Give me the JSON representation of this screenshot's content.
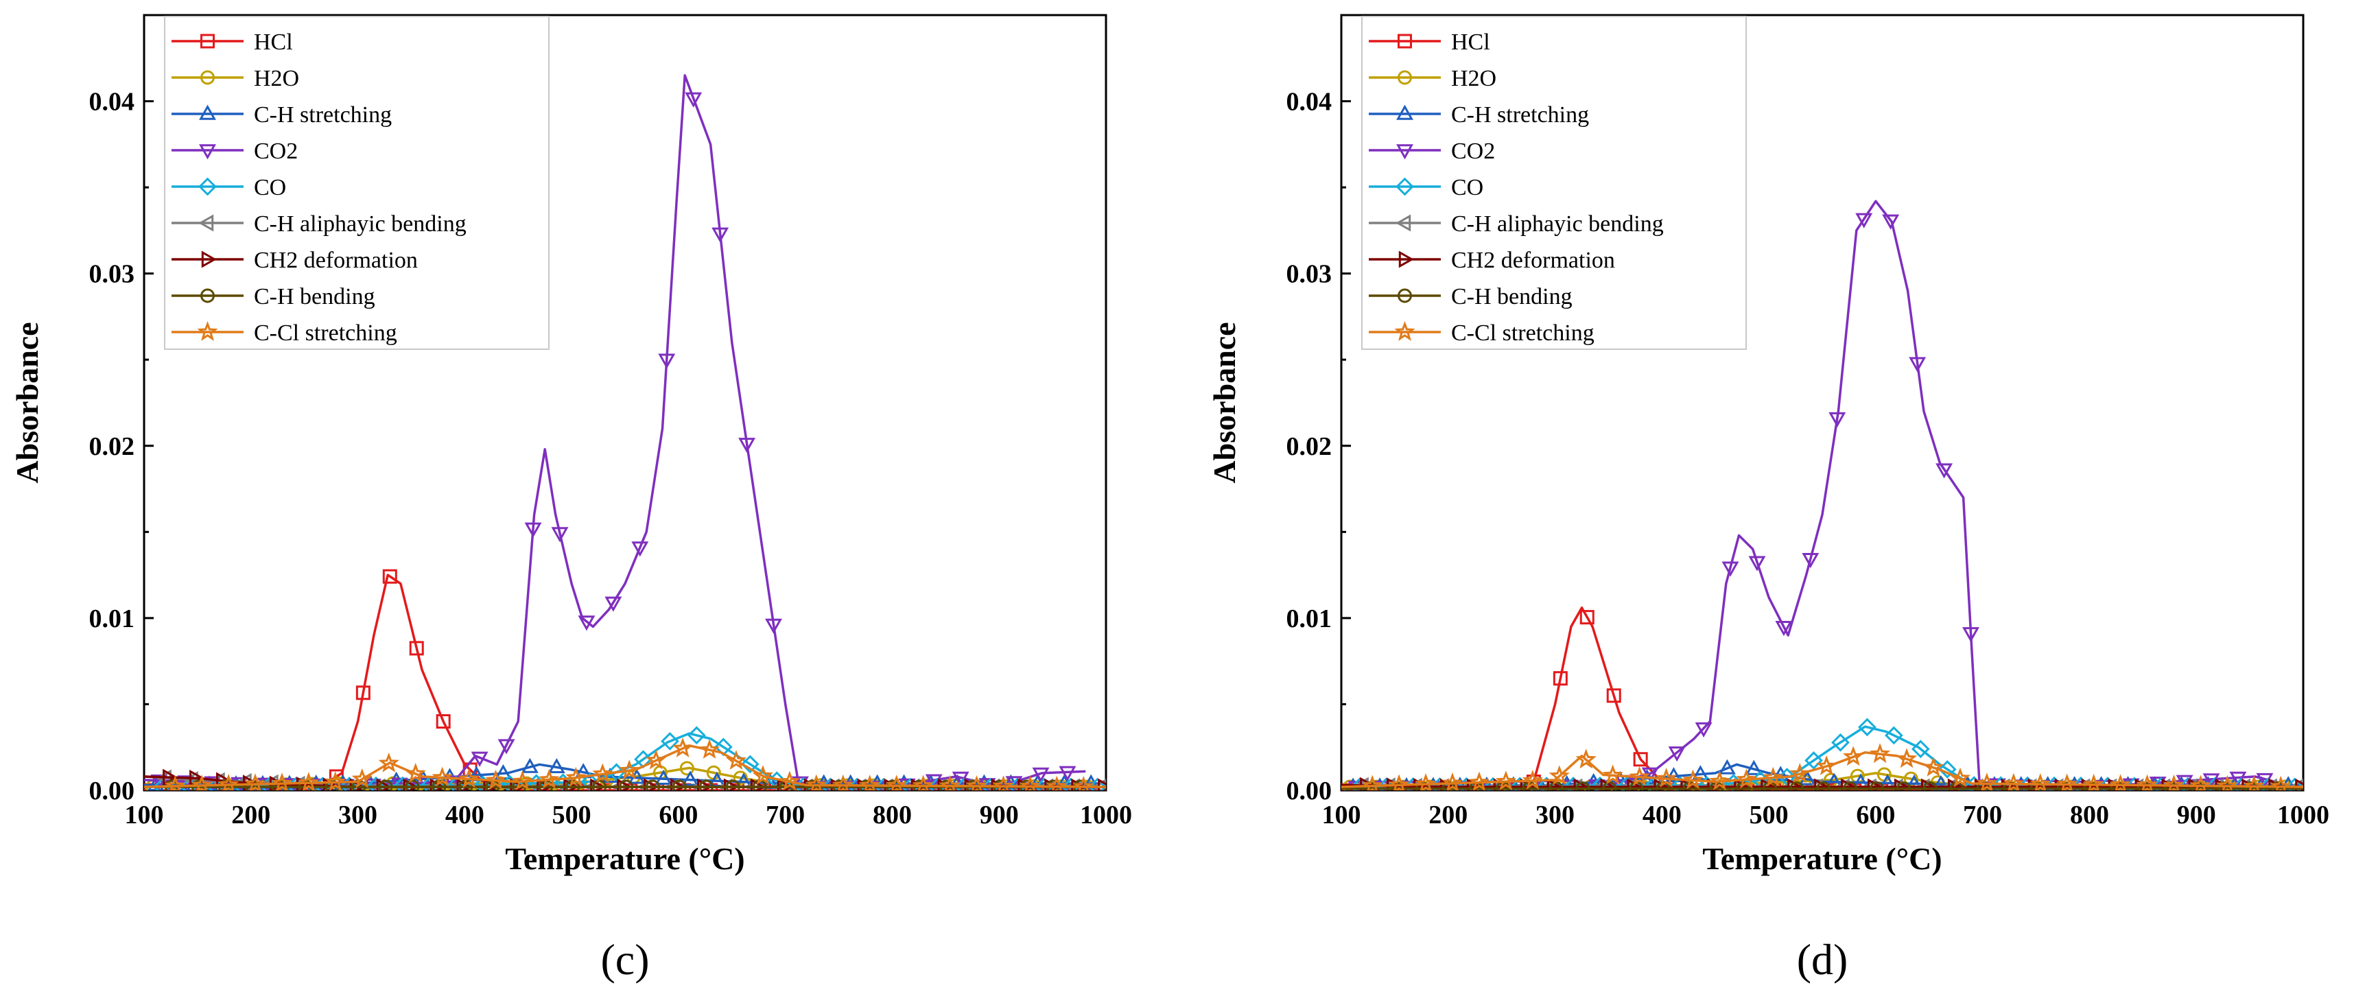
{
  "chart_data": [
    {
      "type": "line",
      "panel_label": "(c)",
      "xlabel": "Temperature (°C)",
      "ylabel": "Absorbance",
      "xlim": [
        100,
        1000
      ],
      "ylim": [
        0,
        0.045
      ],
      "xticks": [
        "100",
        "200",
        "300",
        "400",
        "500",
        "600",
        "700",
        "800",
        "900",
        "1000"
      ],
      "yticks": [
        "0.00",
        "0.01",
        "0.02",
        "0.03",
        "0.04"
      ],
      "legend_position": "top-left",
      "series": [
        {
          "name": "HCl",
          "color": "#e31a1c",
          "marker": "square",
          "points": [
            [
              100,
              0
            ],
            [
              200,
              0
            ],
            [
              260,
              0
            ],
            [
              285,
              0.001
            ],
            [
              300,
              0.004
            ],
            [
              315,
              0.009
            ],
            [
              328,
              0.0125
            ],
            [
              340,
              0.012
            ],
            [
              360,
              0.007
            ],
            [
              380,
              0.004
            ],
            [
              400,
              0.0015
            ],
            [
              420,
              0.0003
            ],
            [
              450,
              0
            ],
            [
              1000,
              0
            ]
          ]
        },
        {
          "name": "H2O",
          "color": "#c0a000",
          "marker": "circle",
          "points": [
            [
              100,
              0.0002
            ],
            [
              300,
              0.0004
            ],
            [
              500,
              0.0004
            ],
            [
              560,
              0.0008
            ],
            [
              610,
              0.0013
            ],
            [
              660,
              0.0007
            ],
            [
              700,
              0.0003
            ],
            [
              1000,
              0.0002
            ]
          ]
        },
        {
          "name": "C-H stretching",
          "color": "#1f5fbf",
          "marker": "triangle-up",
          "points": [
            [
              100,
              0.0003
            ],
            [
              300,
              0.0004
            ],
            [
              440,
              0.001
            ],
            [
              470,
              0.0015
            ],
            [
              500,
              0.0012
            ],
            [
              530,
              0.0008
            ],
            [
              700,
              0.0004
            ],
            [
              1000,
              0.0004
            ]
          ]
        },
        {
          "name": "CO2",
          "color": "#7f2fbf",
          "marker": "triangle-down",
          "points": [
            [
              100,
              0.0006
            ],
            [
              200,
              0.0004
            ],
            [
              300,
              0.0003
            ],
            [
              390,
              0.0005
            ],
            [
              410,
              0.002
            ],
            [
              430,
              0.0015
            ],
            [
              450,
              0.004
            ],
            [
              465,
              0.016
            ],
            [
              475,
              0.0198
            ],
            [
              485,
              0.016
            ],
            [
              500,
              0.012
            ],
            [
              510,
              0.01
            ],
            [
              520,
              0.0095
            ],
            [
              535,
              0.0105
            ],
            [
              550,
              0.012
            ],
            [
              570,
              0.015
            ],
            [
              585,
              0.021
            ],
            [
              598,
              0.034
            ],
            [
              606,
              0.0415
            ],
            [
              615,
              0.04
            ],
            [
              630,
              0.0375
            ],
            [
              650,
              0.026
            ],
            [
              675,
              0.0155
            ],
            [
              700,
              0.005
            ],
            [
              712,
              0.0005
            ],
            [
              730,
              0.0002
            ],
            [
              800,
              0.0002
            ],
            [
              860,
              0.0008
            ],
            [
              900,
              0.0002
            ],
            [
              940,
              0.001
            ],
            [
              980,
              0.0011
            ]
          ]
        },
        {
          "name": "CO",
          "color": "#17aedb",
          "marker": "diamond",
          "points": [
            [
              100,
              0.0002
            ],
            [
              400,
              0.0003
            ],
            [
              520,
              0.0005
            ],
            [
              560,
              0.0015
            ],
            [
              590,
              0.0028
            ],
            [
              610,
              0.0033
            ],
            [
              630,
              0.003
            ],
            [
              660,
              0.0018
            ],
            [
              690,
              0.0006
            ],
            [
              720,
              0.0002
            ],
            [
              1000,
              0.0002
            ]
          ]
        },
        {
          "name": "C-H aliphayic bending",
          "color": "#808080",
          "marker": "triangle-left",
          "points": [
            [
              100,
              0.0008
            ],
            [
              150,
              0.0006
            ],
            [
              200,
              0.0005
            ],
            [
              260,
              0.0003
            ],
            [
              300,
              0.0002
            ],
            [
              1000,
              0.0002
            ]
          ]
        },
        {
          "name": "CH2 deformation",
          "color": "#7f0000",
          "marker": "triangle-right",
          "points": [
            [
              100,
              0.0008
            ],
            [
              150,
              0.0007
            ],
            [
              200,
              0.0004
            ],
            [
              250,
              0.0003
            ],
            [
              300,
              0.0002
            ],
            [
              1000,
              0.0002
            ]
          ]
        },
        {
          "name": "C-H bending",
          "color": "#5c4a00",
          "marker": "circle",
          "points": [
            [
              100,
              0.0002
            ],
            [
              400,
              0.0002
            ],
            [
              1000,
              0.0002
            ]
          ]
        },
        {
          "name": "C-Cl stretching",
          "color": "#e07b1a",
          "marker": "star",
          "points": [
            [
              100,
              0.0002
            ],
            [
              300,
              0.0005
            ],
            [
              330,
              0.0016
            ],
            [
              360,
              0.0008
            ],
            [
              450,
              0.0005
            ],
            [
              500,
              0.0007
            ],
            [
              560,
              0.0012
            ],
            [
              610,
              0.0026
            ],
            [
              640,
              0.0022
            ],
            [
              680,
              0.0008
            ],
            [
              720,
              0.0003
            ],
            [
              1000,
              0.0002
            ]
          ]
        }
      ]
    },
    {
      "type": "line",
      "panel_label": "(d)",
      "xlabel": "Temperature (°C)",
      "ylabel": "Absorbance",
      "xlim": [
        100,
        1000
      ],
      "ylim": [
        0,
        0.045
      ],
      "xticks": [
        "100",
        "200",
        "300",
        "400",
        "500",
        "600",
        "700",
        "800",
        "900",
        "1000"
      ],
      "yticks": [
        "0.00",
        "0.01",
        "0.02",
        "0.03",
        "0.04"
      ],
      "legend_position": "top-left",
      "series": [
        {
          "name": "HCl",
          "color": "#e31a1c",
          "marker": "square",
          "points": [
            [
              100,
              0
            ],
            [
              250,
              0
            ],
            [
              280,
              0.0005
            ],
            [
              300,
              0.005
            ],
            [
              315,
              0.0095
            ],
            [
              325,
              0.0106
            ],
            [
              335,
              0.0095
            ],
            [
              360,
              0.0045
            ],
            [
              380,
              0.0018
            ],
            [
              400,
              0.0005
            ],
            [
              430,
              0
            ],
            [
              1000,
              0
            ]
          ]
        },
        {
          "name": "H2O",
          "color": "#c0a000",
          "marker": "circle",
          "points": [
            [
              100,
              0.0002
            ],
            [
              400,
              0.0002
            ],
            [
              560,
              0.0006
            ],
            [
              600,
              0.001
            ],
            [
              650,
              0.0005
            ],
            [
              700,
              0.0002
            ],
            [
              1000,
              0.0002
            ]
          ]
        },
        {
          "name": "C-H stretching",
          "color": "#1f5fbf",
          "marker": "triangle-up",
          "points": [
            [
              100,
              0.0002
            ],
            [
              300,
              0.0003
            ],
            [
              450,
              0.001
            ],
            [
              470,
              0.0015
            ],
            [
              500,
              0.001
            ],
            [
              550,
              0.0005
            ],
            [
              700,
              0.0003
            ],
            [
              1000,
              0.0003
            ]
          ]
        },
        {
          "name": "CO2",
          "color": "#7f2fbf",
          "marker": "triangle-down",
          "points": [
            [
              100,
              0.0002
            ],
            [
              250,
              0.0002
            ],
            [
              350,
              0.0003
            ],
            [
              390,
              0.001
            ],
            [
              410,
              0.002
            ],
            [
              430,
              0.003
            ],
            [
              445,
              0.004
            ],
            [
              460,
              0.012
            ],
            [
              472,
              0.0148
            ],
            [
              485,
              0.014
            ],
            [
              500,
              0.0112
            ],
            [
              518,
              0.009
            ],
            [
              535,
              0.0125
            ],
            [
              550,
              0.016
            ],
            [
              565,
              0.022
            ],
            [
              582,
              0.0325
            ],
            [
              600,
              0.0342
            ],
            [
              615,
              0.033
            ],
            [
              630,
              0.029
            ],
            [
              645,
              0.022
            ],
            [
              660,
              0.019
            ],
            [
              682,
              0.017
            ],
            [
              690,
              0.008
            ],
            [
              697,
              0.0005
            ],
            [
              720,
              0.0003
            ],
            [
              800,
              0.0002
            ],
            [
              955,
              0.0008
            ],
            [
              980,
              0.0004
            ]
          ]
        },
        {
          "name": "CO",
          "color": "#17aedb",
          "marker": "diamond",
          "points": [
            [
              100,
              0.0002
            ],
            [
              450,
              0.0003
            ],
            [
              520,
              0.0008
            ],
            [
              560,
              0.0025
            ],
            [
              590,
              0.0037
            ],
            [
              610,
              0.0034
            ],
            [
              640,
              0.0025
            ],
            [
              660,
              0.0015
            ],
            [
              690,
              0.0003
            ],
            [
              1000,
              0.0002
            ]
          ]
        },
        {
          "name": "C-H aliphayic bending",
          "color": "#808080",
          "marker": "triangle-left",
          "points": [
            [
              100,
              0.0003
            ],
            [
              200,
              0.0002
            ],
            [
              1000,
              0.0002
            ]
          ]
        },
        {
          "name": "CH2 deformation",
          "color": "#7f0000",
          "marker": "triangle-right",
          "points": [
            [
              100,
              0.0003
            ],
            [
              200,
              0.0002
            ],
            [
              1000,
              0.0002
            ]
          ]
        },
        {
          "name": "C-H bending",
          "color": "#5c4a00",
          "marker": "circle",
          "points": [
            [
              100,
              0.0001
            ],
            [
              1000,
              0.0001
            ]
          ]
        },
        {
          "name": "C-Cl stretching",
          "color": "#e07b1a",
          "marker": "star",
          "points": [
            [
              100,
              0.0002
            ],
            [
              300,
              0.0006
            ],
            [
              325,
              0.002
            ],
            [
              345,
              0.0009
            ],
            [
              450,
              0.0005
            ],
            [
              520,
              0.0008
            ],
            [
              560,
              0.0015
            ],
            [
              590,
              0.0022
            ],
            [
              620,
              0.002
            ],
            [
              660,
              0.0012
            ],
            [
              690,
              0.0004
            ],
            [
              1000,
              0.0002
            ]
          ]
        }
      ]
    }
  ]
}
